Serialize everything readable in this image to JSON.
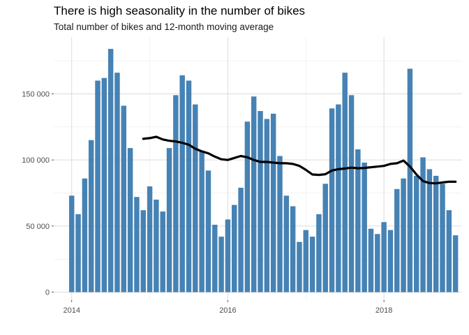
{
  "chart_data": {
    "type": "bar",
    "title": "There is high seasonality in the number of bikes",
    "subtitle": "Total number of bikes and 12-month moving average",
    "xlabel": "",
    "ylabel": "",
    "x_ticks": [
      {
        "value": 2014,
        "label": "2014"
      },
      {
        "value": 2016,
        "label": "2016"
      },
      {
        "value": 2018,
        "label": "2018"
      }
    ],
    "y_ticks": [
      {
        "value": 0,
        "label": "0"
      },
      {
        "value": 50000,
        "label": "50 000"
      },
      {
        "value": 100000,
        "label": "100 000"
      },
      {
        "value": 150000,
        "label": "150 000"
      }
    ],
    "xlim": [
      2013.77,
      2019.0
    ],
    "ylim": [
      -6000,
      193000
    ],
    "grid": true,
    "bar_color": "#4682b4",
    "line_color": "#000000",
    "series": [
      {
        "type": "bar",
        "start": 2014.0,
        "step": 0.08333,
        "values": [
          73000,
          59000,
          86000,
          115000,
          160000,
          162000,
          184000,
          166000,
          141000,
          109000,
          72000,
          62000,
          80000,
          70000,
          61000,
          109000,
          149000,
          164000,
          160000,
          142000,
          107000,
          92000,
          51000,
          42000,
          55000,
          66000,
          79000,
          129000,
          148000,
          137000,
          131000,
          135000,
          103000,
          73000,
          65000,
          38000,
          47000,
          42000,
          59000,
          82000,
          139000,
          142000,
          166000,
          149000,
          108000,
          98000,
          48000,
          44000,
          53000,
          47000,
          78000,
          86000,
          169000,
          88000,
          102000,
          93000,
          88000,
          82000,
          62000,
          43000
        ]
      },
      {
        "type": "line",
        "start": 2014.9167,
        "step": 0.08333,
        "values": [
          116000,
          116500,
          117500,
          115500,
          114500,
          114000,
          113000,
          111500,
          108500,
          106500,
          105000,
          102500,
          100500,
          100000,
          101500,
          103000,
          102000,
          100000,
          98500,
          98500,
          98000,
          97500,
          97500,
          97000,
          95500,
          92500,
          89000,
          88700,
          89200,
          92000,
          93000,
          93500,
          94200,
          93700,
          94000,
          94500,
          95000,
          95500,
          97000,
          97500,
          99500,
          95000,
          89000,
          84000,
          82500,
          82300,
          83000,
          83500,
          83500
        ]
      }
    ]
  }
}
